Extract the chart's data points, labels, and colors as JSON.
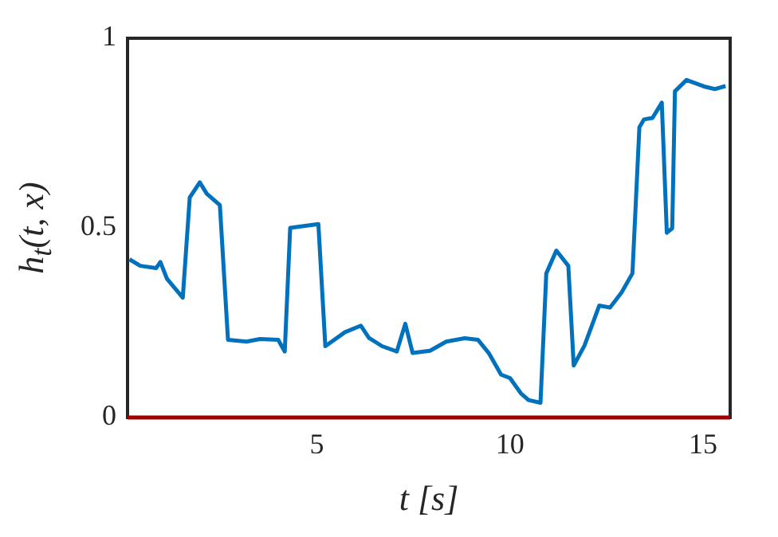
{
  "chart_data": {
    "type": "line",
    "xlabel": "t [s]",
    "ylabel": "h$_{t}$(t, x)",
    "xlim": [
      0.1,
      15.7
    ],
    "ylim": [
      0,
      1
    ],
    "xticks": [
      5,
      10,
      15
    ],
    "yticks": [
      0,
      0.5,
      1
    ],
    "grid": false,
    "legend": false,
    "marker": "none",
    "line_style": "solid",
    "series": [
      {
        "color": "#a00000",
        "x": [
          0.1,
          15.7
        ],
        "values": [
          0,
          0
        ]
      },
      {
        "color": "#0072bd",
        "x": [
          0.15,
          0.43,
          0.84,
          0.95,
          1.12,
          1.53,
          1.71,
          1.97,
          2.15,
          2.49,
          2.7,
          3.18,
          3.53,
          4.0,
          4.17,
          4.31,
          5.04,
          5.22,
          5.73,
          6.14,
          6.35,
          6.69,
          7.07,
          7.29,
          7.48,
          7.93,
          8.35,
          8.83,
          9.17,
          9.45,
          9.77,
          10.0,
          10.28,
          10.48,
          10.79,
          10.94,
          11.2,
          11.51,
          11.65,
          11.93,
          12.31,
          12.59,
          12.89,
          13.17,
          13.35,
          13.47,
          13.69,
          13.93,
          14.06,
          14.2,
          14.27,
          14.57,
          15.02,
          15.3,
          15.58
        ],
        "values": [
          0.417,
          0.4,
          0.394,
          0.41,
          0.366,
          0.316,
          0.58,
          0.62,
          0.59,
          0.56,
          0.205,
          0.2,
          0.207,
          0.205,
          0.174,
          0.5,
          0.51,
          0.188,
          0.225,
          0.242,
          0.21,
          0.188,
          0.174,
          0.247,
          0.17,
          0.176,
          0.2,
          0.209,
          0.205,
          0.17,
          0.113,
          0.104,
          0.064,
          0.046,
          0.039,
          0.38,
          0.44,
          0.4,
          0.137,
          0.19,
          0.295,
          0.29,
          0.33,
          0.38,
          0.765,
          0.786,
          0.79,
          0.83,
          0.487,
          0.499,
          0.86,
          0.89,
          0.873,
          0.866,
          0.874
        ]
      }
    ]
  }
}
